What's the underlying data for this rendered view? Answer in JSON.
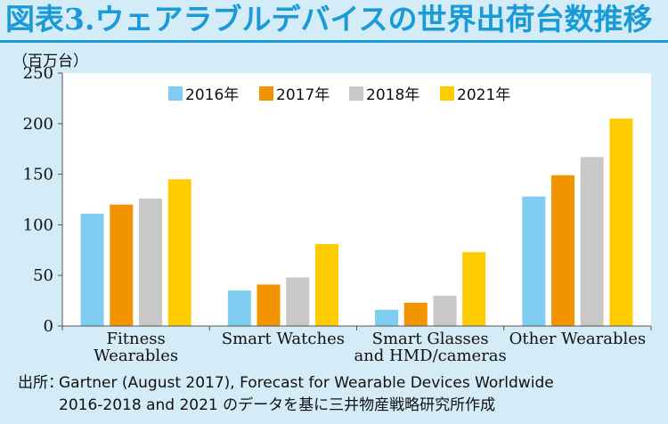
{
  "title": "図表3.ウェアラブルデバイスの世界出荷台数推移",
  "unit_label": "（百万台）",
  "source": {
    "label": "出所：",
    "line1": "Gartner (August 2017), Forecast for Wearable Devices Worldwide",
    "line2": "2016-2018 and 2021 のデータを基に三井物産戦略研究所作成"
  },
  "chart_data": {
    "type": "bar",
    "categories": [
      [
        "Fitness",
        "Wearables"
      ],
      [
        "Smart Watches"
      ],
      [
        "Smart Glasses",
        "and HMD/cameras"
      ],
      [
        "Other Wearables"
      ]
    ],
    "series": [
      {
        "name": "2016年",
        "color": "#7fcdf0",
        "values": [
          111,
          35,
          16,
          128
        ]
      },
      {
        "name": "2017年",
        "color": "#f29400",
        "values": [
          120,
          41,
          23,
          149
        ]
      },
      {
        "name": "2018年",
        "color": "#c8c8c8",
        "values": [
          126,
          48,
          30,
          167
        ]
      },
      {
        "name": "2021年",
        "color": "#ffcc00",
        "values": [
          145,
          81,
          73,
          205
        ]
      }
    ],
    "ylim": [
      0,
      250
    ],
    "yticks": [
      0,
      50,
      100,
      150,
      200,
      250
    ],
    "grid": false,
    "legend_position": "top-center"
  }
}
